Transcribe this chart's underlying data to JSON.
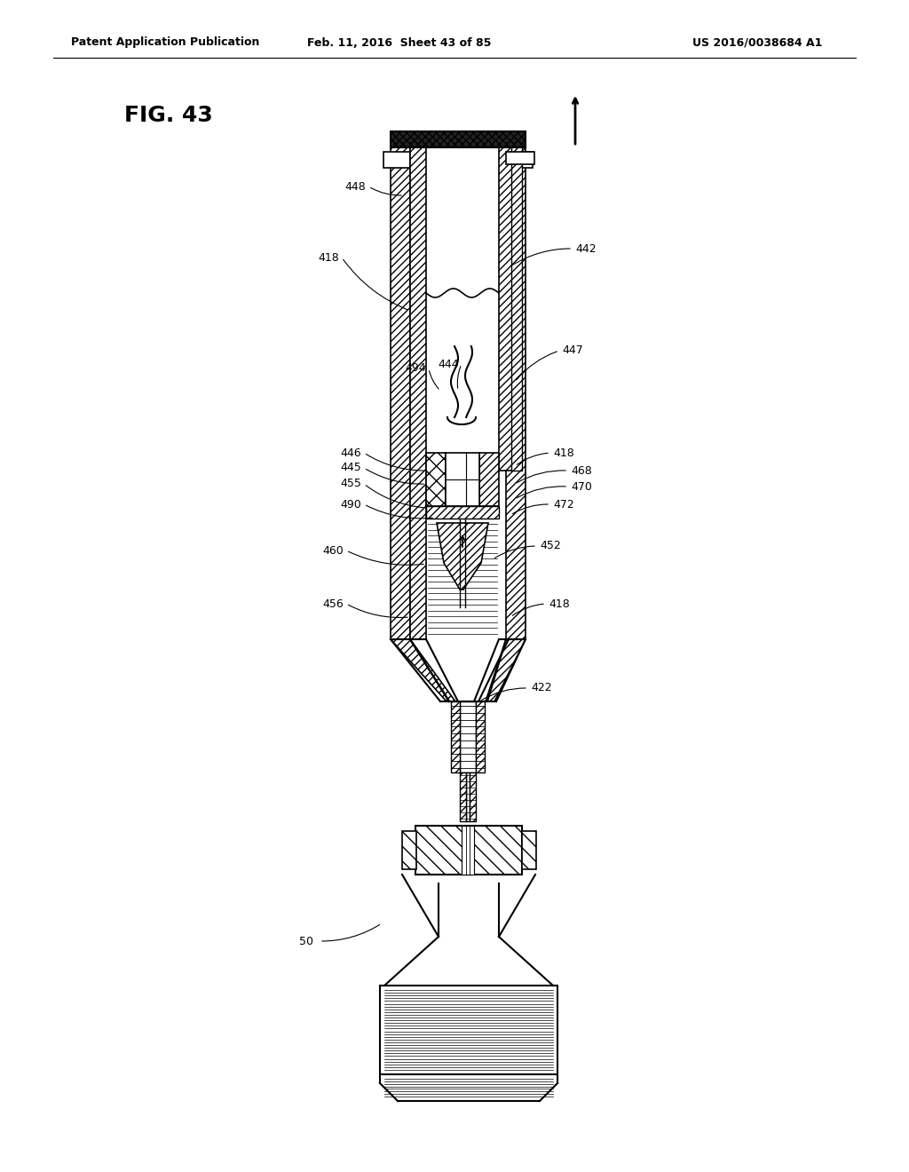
{
  "header_left": "Patent Application Publication",
  "header_middle": "Feb. 11, 2016  Sheet 43 of 85",
  "header_right": "US 2016/0038684 A1",
  "fig_label": "FIG. 43",
  "bg_color": "#ffffff"
}
